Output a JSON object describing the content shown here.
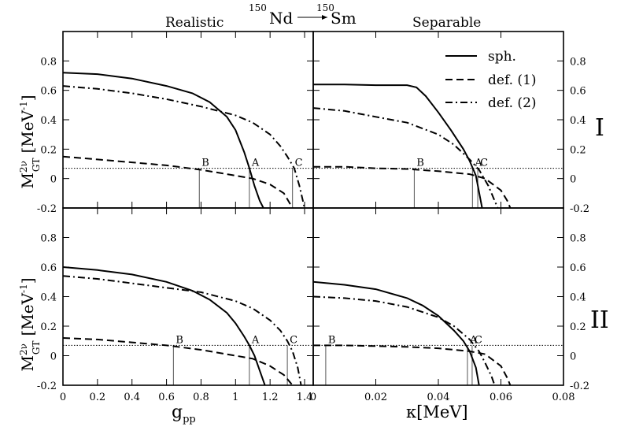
{
  "title": {
    "left_nuc": "150",
    "left_el": "Nd",
    "right_nuc": "150",
    "right_el": "Sm"
  },
  "column_titles": {
    "left": "Realistic",
    "right": "Separable"
  },
  "row_labels": [
    "I",
    "II"
  ],
  "ylabel": {
    "main": "M",
    "sup": "2ν",
    "sub": "GT",
    "units": "[MeV",
    "unit_exp": "-1",
    "close": "]"
  },
  "xlabel_left": {
    "main": "g",
    "sub": "pp"
  },
  "xlabel_right": {
    "main": "κ[MeV]"
  },
  "chart_data": {
    "type": "line",
    "ylim": [
      -0.2,
      1.0
    ],
    "yticks": [
      -0.2,
      0,
      0.2,
      0.4,
      0.6,
      0.8
    ],
    "ytick_labels": [
      "-0.2",
      "0",
      "0.2",
      "0.4",
      "0.6",
      "0.8"
    ],
    "legend": {
      "position": "top-right of top-right panel",
      "entries": [
        {
          "label": "sph.",
          "style": "solid"
        },
        {
          "label": "def. (1)",
          "style": "dashed"
        },
        {
          "label": "def. (2)",
          "style": "dashdot"
        }
      ]
    },
    "dotted_reference_y": 0.07,
    "panels": [
      {
        "id": "realistic-I",
        "xlim": [
          0,
          1.45
        ],
        "xticks": [
          0,
          0.2,
          0.4,
          0.6,
          0.8,
          1,
          1.2,
          1.4
        ],
        "xtick_labels": [
          "0",
          "0.2",
          "0.4",
          "0.6",
          "0.8",
          "1",
          "1.2",
          "1.4"
        ],
        "series": [
          {
            "name": "sph.",
            "style": "solid",
            "x": [
              0,
              0.2,
              0.4,
              0.6,
              0.75,
              0.85,
              0.95,
              1.0,
              1.05,
              1.08,
              1.11,
              1.14,
              1.17
            ],
            "y": [
              0.72,
              0.71,
              0.68,
              0.63,
              0.58,
              0.52,
              0.42,
              0.33,
              0.18,
              0.07,
              -0.05,
              -0.15,
              -0.22
            ]
          },
          {
            "name": "def. (1)",
            "style": "dashed",
            "x": [
              0,
              0.2,
              0.4,
              0.6,
              0.8,
              1.0,
              1.1,
              1.2,
              1.28,
              1.33
            ],
            "y": [
              0.15,
              0.13,
              0.11,
              0.09,
              0.06,
              0.02,
              0.0,
              -0.04,
              -0.1,
              -0.2
            ]
          },
          {
            "name": "def. (2)",
            "style": "dashdot",
            "x": [
              0,
              0.2,
              0.4,
              0.6,
              0.8,
              1.0,
              1.1,
              1.2,
              1.26,
              1.3,
              1.34,
              1.37,
              1.4
            ],
            "y": [
              0.63,
              0.61,
              0.58,
              0.54,
              0.49,
              0.43,
              0.38,
              0.3,
              0.22,
              0.15,
              0.07,
              -0.05,
              -0.2
            ]
          }
        ],
        "markers": [
          {
            "label": "B",
            "x": 0.79
          },
          {
            "label": "A",
            "x": 1.08
          },
          {
            "label": "C",
            "x": 1.33
          }
        ]
      },
      {
        "id": "separable-I",
        "xlim": [
          0,
          0.08
        ],
        "xticks": [
          0,
          0.02,
          0.04,
          0.06,
          0.08
        ],
        "xtick_labels": [
          "0",
          "0.02",
          "0.04",
          "0.06",
          "0.08"
        ],
        "series": [
          {
            "name": "sph.",
            "style": "solid",
            "x": [
              0,
              0.01,
              0.02,
              0.03,
              0.033,
              0.036,
              0.04,
              0.044,
              0.048,
              0.05,
              0.052,
              0.054
            ],
            "y": [
              0.64,
              0.64,
              0.635,
              0.635,
              0.62,
              0.56,
              0.45,
              0.33,
              0.2,
              0.12,
              0.02,
              -0.2
            ]
          },
          {
            "name": "def. (1)",
            "style": "dashed",
            "x": [
              0,
              0.01,
              0.02,
              0.03,
              0.04,
              0.05,
              0.055,
              0.06,
              0.062,
              0.063
            ],
            "y": [
              0.08,
              0.08,
              0.07,
              0.065,
              0.05,
              0.03,
              0.0,
              -0.08,
              -0.15,
              -0.2
            ]
          },
          {
            "name": "def. (2)",
            "style": "dashdot",
            "x": [
              0,
              0.01,
              0.02,
              0.03,
              0.04,
              0.045,
              0.05,
              0.053,
              0.056,
              0.058,
              0.059
            ],
            "y": [
              0.48,
              0.46,
              0.42,
              0.38,
              0.3,
              0.23,
              0.13,
              0.06,
              -0.05,
              -0.15,
              -0.2
            ]
          }
        ],
        "markers": [
          {
            "label": "B",
            "x": 0.0323
          },
          {
            "label": "A",
            "x": 0.0509
          },
          {
            "label": "C",
            "x": 0.0526
          }
        ]
      },
      {
        "id": "realistic-II",
        "xlim": [
          0,
          1.45
        ],
        "xticks": [
          0,
          0.2,
          0.4,
          0.6,
          0.8,
          1,
          1.2,
          1.4
        ],
        "xtick_labels": [
          "0",
          "0.2",
          "0.4",
          "0.6",
          "0.8",
          "1",
          "1.2",
          "1.4"
        ],
        "series": [
          {
            "name": "sph.",
            "style": "solid",
            "x": [
              0,
              0.2,
              0.4,
              0.6,
              0.75,
              0.85,
              0.95,
              1.0,
              1.05,
              1.08,
              1.11,
              1.14,
              1.17
            ],
            "y": [
              0.6,
              0.58,
              0.55,
              0.5,
              0.44,
              0.38,
              0.29,
              0.22,
              0.13,
              0.07,
              0.0,
              -0.1,
              -0.2
            ]
          },
          {
            "name": "def. (1)",
            "style": "dashed",
            "x": [
              0,
              0.2,
              0.4,
              0.6,
              0.8,
              1.0,
              1.1,
              1.2,
              1.28,
              1.33
            ],
            "y": [
              0.12,
              0.11,
              0.09,
              0.07,
              0.04,
              0.0,
              -0.02,
              -0.07,
              -0.13,
              -0.2
            ]
          },
          {
            "name": "def. (2)",
            "style": "dashdot",
            "x": [
              0,
              0.2,
              0.4,
              0.6,
              0.8,
              1.0,
              1.1,
              1.2,
              1.26,
              1.3,
              1.33,
              1.36,
              1.38
            ],
            "y": [
              0.54,
              0.52,
              0.49,
              0.46,
              0.43,
              0.37,
              0.32,
              0.24,
              0.17,
              0.1,
              0.03,
              -0.08,
              -0.2
            ]
          }
        ],
        "markers": [
          {
            "label": "B",
            "x": 0.64
          },
          {
            "label": "A",
            "x": 1.08
          },
          {
            "label": "C",
            "x": 1.3
          }
        ]
      },
      {
        "id": "separable-II",
        "xlim": [
          0,
          0.08
        ],
        "xticks": [
          0,
          0.02,
          0.04,
          0.06,
          0.08
        ],
        "xtick_labels": [
          "0",
          "0.02",
          "0.04",
          "0.06",
          "0.08"
        ],
        "series": [
          {
            "name": "sph.",
            "style": "solid",
            "x": [
              0,
              0.01,
              0.02,
              0.03,
              0.035,
              0.04,
              0.045,
              0.048,
              0.05,
              0.052,
              0.053
            ],
            "y": [
              0.5,
              0.48,
              0.45,
              0.39,
              0.34,
              0.27,
              0.17,
              0.1,
              0.03,
              -0.08,
              -0.2
            ]
          },
          {
            "name": "def. (1)",
            "style": "dashed",
            "x": [
              0,
              0.01,
              0.02,
              0.03,
              0.04,
              0.05,
              0.055,
              0.06,
              0.062,
              0.063
            ],
            "y": [
              0.07,
              0.07,
              0.065,
              0.06,
              0.05,
              0.03,
              0.01,
              -0.07,
              -0.15,
              -0.2
            ]
          },
          {
            "name": "def. (2)",
            "style": "dashdot",
            "x": [
              0,
              0.01,
              0.02,
              0.03,
              0.04,
              0.045,
              0.05,
              0.053,
              0.055,
              0.057,
              0.058
            ],
            "y": [
              0.4,
              0.39,
              0.37,
              0.33,
              0.26,
              0.2,
              0.11,
              0.03,
              -0.05,
              -0.14,
              -0.2
            ]
          }
        ],
        "markers": [
          {
            "label": "B",
            "x": 0.004
          },
          {
            "label": "A",
            "x": 0.0493
          },
          {
            "label": "C",
            "x": 0.0508
          }
        ]
      }
    ]
  }
}
